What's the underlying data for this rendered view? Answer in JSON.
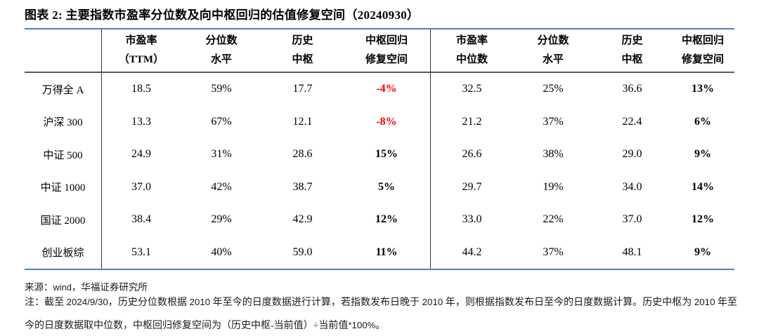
{
  "title": "图表 2: 主要指数市盈率分位数及向中枢回归的估值修复空间（20240930）",
  "colors": {
    "border_blue": "#4f81bd",
    "rule_gray": "#5a5a5a",
    "negative_red": "#fe0000"
  },
  "table": {
    "headers": [
      {
        "line1": "市盈率",
        "line2": "（TTM）"
      },
      {
        "line1": "分位数",
        "line2": "水平"
      },
      {
        "line1": "历史",
        "line2": "中枢"
      },
      {
        "line1": "中枢回归",
        "line2": "修复空间"
      },
      {
        "line1": "市盈率",
        "line2": "中位数"
      },
      {
        "line1": "分位数",
        "line2": "水平"
      },
      {
        "line1": "历史",
        "line2": "中枢"
      },
      {
        "line1": "中枢回归",
        "line2": "修复空间"
      }
    ],
    "rows": [
      {
        "label": "万得全 A",
        "cells": [
          "18.5",
          "59%",
          "17.7",
          "-4%",
          "32.5",
          "25%",
          "36.6",
          "13%"
        ]
      },
      {
        "label": "沪深 300",
        "cells": [
          "13.3",
          "67%",
          "12.1",
          "-8%",
          "21.2",
          "37%",
          "22.4",
          "6%"
        ]
      },
      {
        "label": "中证 500",
        "cells": [
          "24.9",
          "31%",
          "28.6",
          "15%",
          "26.6",
          "38%",
          "29.0",
          "9%"
        ]
      },
      {
        "label": "中证 1000",
        "cells": [
          "37.0",
          "42%",
          "38.7",
          "5%",
          "29.7",
          "19%",
          "34.0",
          "14%"
        ]
      },
      {
        "label": "国证 2000",
        "cells": [
          "38.4",
          "29%",
          "42.9",
          "12%",
          "33.0",
          "22%",
          "37.0",
          "12%"
        ]
      },
      {
        "label": "创业板综",
        "cells": [
          "53.1",
          "40%",
          "59.0",
          "11%",
          "44.2",
          "37%",
          "48.1",
          "9%"
        ]
      }
    ]
  },
  "source": "来源：wind，华福证券研究所",
  "note": "注：截至 2024/9/30，历史分位数根据 2010 年至今的日度数据进行计算，若指数发布日晚于 2010 年，则根据指数发布日至今的日度数据计算。历史中枢为 2010 年至今的日度数据取中位数，中枢回归修复空间为（历史中枢-当前值）÷当前值*100%。"
}
